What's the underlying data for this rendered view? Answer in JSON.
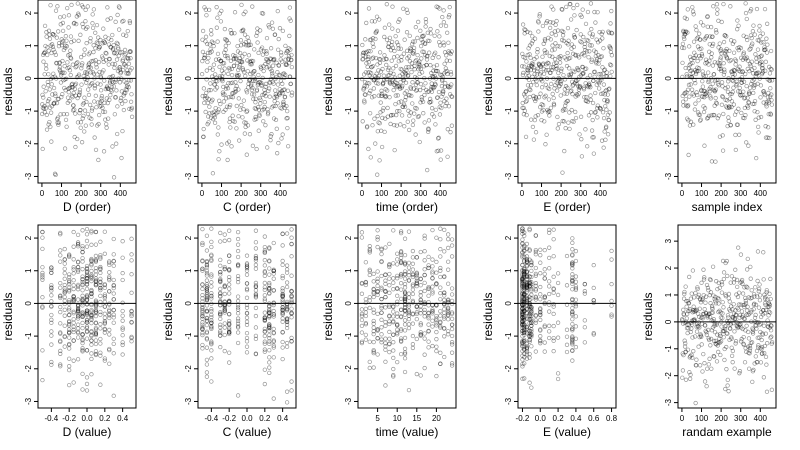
{
  "chart_data": [
    {
      "type": "scatter",
      "ylabel": "residuals",
      "xlabel": "D (order)",
      "xlim": [
        -20,
        480
      ],
      "ylim": [
        -3.2,
        2.4
      ],
      "xticks": [
        0,
        100,
        200,
        300,
        400
      ],
      "xtick_labels": [
        "0",
        "100",
        "200",
        "300",
        "400"
      ],
      "yticks": [
        -3,
        -2,
        -1,
        0,
        1,
        2
      ],
      "ytick_labels": [
        "-3",
        "-2",
        "-1",
        "0",
        "1",
        "2"
      ],
      "hline": 0,
      "gen": {
        "mode": "order",
        "n": 460,
        "seed": 11
      }
    },
    {
      "type": "scatter",
      "ylabel": "residuals",
      "xlabel": "C (order)",
      "xlim": [
        -20,
        480
      ],
      "ylim": [
        -3.2,
        2.4
      ],
      "xticks": [
        0,
        100,
        200,
        300,
        400
      ],
      "xtick_labels": [
        "0",
        "100",
        "200",
        "300",
        "400"
      ],
      "yticks": [
        -3,
        -2,
        -1,
        0,
        1,
        2
      ],
      "ytick_labels": [
        "-3",
        "-2",
        "-1",
        "0",
        "1",
        "2"
      ],
      "hline": 0,
      "gen": {
        "mode": "order",
        "n": 460,
        "seed": 22
      }
    },
    {
      "type": "scatter",
      "ylabel": "residuals",
      "xlabel": "time (order)",
      "xlim": [
        -20,
        480
      ],
      "ylim": [
        -3.2,
        2.4
      ],
      "xticks": [
        0,
        100,
        200,
        300,
        400
      ],
      "xtick_labels": [
        "0",
        "100",
        "200",
        "300",
        "400"
      ],
      "yticks": [
        -3,
        -2,
        -1,
        0,
        1,
        2
      ],
      "ytick_labels": [
        "-3",
        "-2",
        "-1",
        "0",
        "1",
        "2"
      ],
      "hline": 0,
      "gen": {
        "mode": "order",
        "n": 460,
        "seed": 33
      }
    },
    {
      "type": "scatter",
      "ylabel": "residuals",
      "xlabel": "E (order)",
      "xlim": [
        -20,
        480
      ],
      "ylim": [
        -3.2,
        2.4
      ],
      "xticks": [
        0,
        100,
        200,
        300,
        400
      ],
      "xtick_labels": [
        "0",
        "100",
        "200",
        "300",
        "400"
      ],
      "yticks": [
        -3,
        -2,
        -1,
        0,
        1,
        2
      ],
      "ytick_labels": [
        "-3",
        "-2",
        "-1",
        "0",
        "1",
        "2"
      ],
      "hline": 0,
      "gen": {
        "mode": "order",
        "n": 460,
        "seed": 44
      }
    },
    {
      "type": "scatter",
      "ylabel": "residuals",
      "xlabel": "sample index",
      "xlim": [
        -20,
        480
      ],
      "ylim": [
        -3.2,
        2.4
      ],
      "xticks": [
        0,
        100,
        200,
        300,
        400
      ],
      "xtick_labels": [
        "0",
        "100",
        "200",
        "300",
        "400"
      ],
      "yticks": [
        -3,
        -2,
        -1,
        0,
        1,
        2
      ],
      "ytick_labels": [
        "-3",
        "-2",
        "-1",
        "0",
        "1",
        "2"
      ],
      "hline": 0,
      "gen": {
        "mode": "order",
        "n": 460,
        "seed": 55
      }
    },
    {
      "type": "scatter",
      "ylabel": "residuals",
      "xlabel": "D (value)",
      "xlim": [
        -0.55,
        0.55
      ],
      "ylim": [
        -3.2,
        2.4
      ],
      "xticks": [
        -0.4,
        -0.2,
        0.0,
        0.2,
        0.4
      ],
      "xtick_labels": [
        "-0.4",
        "-0.2",
        "0.0",
        "0.2",
        "0.4"
      ],
      "yticks": [
        -3,
        -2,
        -1,
        0,
        1,
        2
      ],
      "ytick_labels": [
        "-3",
        "-2",
        "-1",
        "0",
        "1",
        "2"
      ],
      "hline": 0,
      "gen": {
        "mode": "levels",
        "n": 460,
        "seed": 66,
        "levels": [
          -0.5,
          -0.4,
          -0.3,
          -0.25,
          -0.2,
          -0.15,
          -0.1,
          -0.05,
          0.0,
          0.05,
          0.1,
          0.15,
          0.2,
          0.25,
          0.3,
          0.4,
          0.5
        ],
        "weights": [
          2,
          3,
          3,
          3,
          5,
          4,
          5,
          6,
          7,
          6,
          6,
          4,
          3,
          3,
          3,
          2,
          2
        ]
      }
    },
    {
      "type": "scatter",
      "ylabel": "residuals",
      "xlabel": "C (value)",
      "xlim": [
        -0.55,
        0.55
      ],
      "ylim": [
        -3.2,
        2.4
      ],
      "xticks": [
        -0.4,
        -0.2,
        0.0,
        0.2,
        0.4
      ],
      "xtick_labels": [
        "-0.4",
        "-0.2",
        "0.0",
        "0.2",
        "0.4"
      ],
      "yticks": [
        -3,
        -2,
        -1,
        0,
        1,
        2
      ],
      "ytick_labels": [
        "-3",
        "-2",
        "-1",
        "0",
        "1",
        "2"
      ],
      "hline": 0,
      "gen": {
        "mode": "levels",
        "n": 460,
        "seed": 77,
        "levels": [
          -0.5,
          -0.45,
          -0.4,
          -0.3,
          -0.25,
          -0.2,
          -0.1,
          0.0,
          0.1,
          0.2,
          0.25,
          0.3,
          0.4,
          0.45,
          0.5
        ],
        "weights": [
          4,
          5,
          4,
          4,
          3,
          4,
          3,
          3,
          3,
          4,
          5,
          3,
          4,
          3,
          3
        ]
      }
    },
    {
      "type": "scatter",
      "ylabel": "residuals",
      "xlabel": "time (value)",
      "xlim": [
        0,
        25
      ],
      "ylim": [
        -3.2,
        2.4
      ],
      "xticks": [
        5,
        10,
        15,
        20
      ],
      "xtick_labels": [
        "5",
        "10",
        "15",
        "20"
      ],
      "yticks": [
        -3,
        -2,
        -1,
        0,
        1,
        2
      ],
      "ytick_labels": [
        "-3",
        "-2",
        "-1",
        "0",
        "1",
        "2"
      ],
      "hline": 0,
      "gen": {
        "mode": "levels",
        "n": 460,
        "seed": 88,
        "levels": [
          1,
          2,
          3,
          4,
          5,
          6,
          7,
          8,
          9,
          10,
          11,
          12,
          13,
          14,
          15,
          16,
          17,
          18,
          19,
          20,
          21,
          22,
          23,
          24
        ],
        "weights": [
          2,
          2,
          2,
          3,
          3,
          3,
          3,
          3,
          3,
          3,
          4,
          6,
          3,
          3,
          3,
          3,
          3,
          3,
          3,
          3,
          3,
          3,
          3,
          3
        ]
      }
    },
    {
      "type": "scatter",
      "ylabel": "residuals",
      "xlabel": "E (value)",
      "xlim": [
        -0.25,
        0.85
      ],
      "ylim": [
        -3.2,
        2.4
      ],
      "xticks": [
        -0.2,
        0.0,
        0.2,
        0.4,
        0.6,
        0.8
      ],
      "xtick_labels": [
        "-0.2",
        "0.0",
        "0.2",
        "0.4",
        "0.6",
        "0.8"
      ],
      "yticks": [
        -3,
        -2,
        -1,
        0,
        1,
        2
      ],
      "ytick_labels": [
        "-3",
        "-2",
        "-1",
        "0",
        "1",
        "2"
      ],
      "hline": 0,
      "gen": {
        "mode": "levels",
        "n": 460,
        "seed": 99,
        "levels": [
          -0.2,
          -0.18,
          -0.15,
          -0.12,
          -0.1,
          -0.05,
          0.0,
          0.05,
          0.1,
          0.15,
          0.2,
          0.3,
          0.36,
          0.4,
          0.5,
          0.6,
          0.8
        ],
        "weights": [
          14,
          10,
          8,
          6,
          5,
          3,
          3,
          2,
          2,
          2,
          1,
          1,
          6,
          2,
          1,
          1,
          1
        ]
      }
    },
    {
      "type": "scatter",
      "ylabel": "residuals",
      "xlabel": "randam example",
      "xlim": [
        -20,
        480
      ],
      "ylim": [
        -3.2,
        3.6
      ],
      "xticks": [
        0,
        100,
        200,
        300,
        400
      ],
      "xtick_labels": [
        "0",
        "100",
        "200",
        "300",
        "400"
      ],
      "yticks": [
        -3,
        -2,
        -1,
        0,
        1,
        2,
        3
      ],
      "ytick_labels": [
        "-3",
        "-2",
        "-1",
        "0",
        "1",
        "2",
        "3"
      ],
      "hline": 0,
      "gen": {
        "mode": "order",
        "n": 460,
        "seed": 111
      }
    }
  ]
}
